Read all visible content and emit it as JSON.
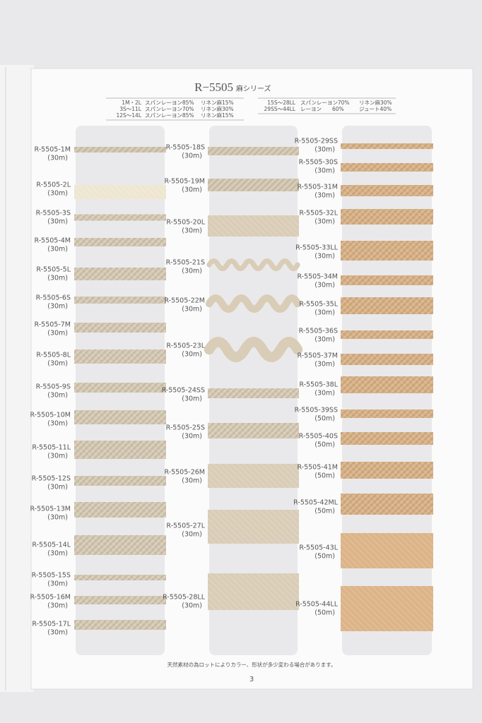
{
  "header": {
    "title": "R−5505",
    "series": "麻シリーズ"
  },
  "composition": {
    "left": [
      [
        "1M・2L",
        "スパンレーヨン85%",
        "リネン麻15%"
      ],
      [
        "3S～11L",
        "スパンレーヨン70%",
        "リネン麻30%"
      ],
      [
        "12S～14L",
        "スパンレーヨン85%",
        "リネン麻15%"
      ]
    ],
    "right": [
      [
        "15S～28LL",
        "スパンレーヨン70%",
        "リネン麻30%"
      ],
      [
        "29SS～44LL",
        "レーヨン　　60%",
        "ジュート40%"
      ]
    ]
  },
  "columns": [
    [
      {
        "code": "R-5505-1M",
        "length": "(30m)"
      },
      {
        "code": "R-5505-2L",
        "length": "(30m)"
      },
      {
        "code": "R-5505-3S",
        "length": "(30m)"
      },
      {
        "code": "R-5505-4M",
        "length": "(30m)"
      },
      {
        "code": "R-5505-5L",
        "length": "(30m)"
      },
      {
        "code": "R-5505-6S",
        "length": "(30m)"
      },
      {
        "code": "R-5505-7M",
        "length": "(30m)"
      },
      {
        "code": "R-5505-8L",
        "length": "(30m)"
      },
      {
        "code": "R-5505-9S",
        "length": "(30m)"
      },
      {
        "code": "R-5505-10M",
        "length": "(30m)"
      },
      {
        "code": "R-5505-11L",
        "length": "(30m)"
      },
      {
        "code": "R-5505-12S",
        "length": "(30m)"
      },
      {
        "code": "R-5505-13M",
        "length": "(30m)"
      },
      {
        "code": "R-5505-14L",
        "length": "(30m)"
      },
      {
        "code": "R-5505-15S",
        "length": "(30m)"
      },
      {
        "code": "R-5505-16M",
        "length": "(30m)"
      },
      {
        "code": "R-5505-17L",
        "length": "(30m)"
      }
    ],
    [
      {
        "code": "R-5505-18S",
        "length": "(30m)"
      },
      {
        "code": "R-5505-19M",
        "length": "(30m)"
      },
      {
        "code": "R-5505-20L",
        "length": "(30m)"
      },
      {
        "code": "R-5505-21S",
        "length": "(30m)"
      },
      {
        "code": "R-5505-22M",
        "length": "(30m)"
      },
      {
        "code": "R-5505-23L",
        "length": "(30m)"
      },
      {
        "code": "R-5505-24SS",
        "length": "(30m)"
      },
      {
        "code": "R-5505-25S",
        "length": "(30m)"
      },
      {
        "code": "R-5505-26M",
        "length": "(30m)"
      },
      {
        "code": "R-5505-27L",
        "length": "(30m)"
      },
      {
        "code": "R-5505-28LL",
        "length": "(30m)"
      }
    ],
    [
      {
        "code": "R-5505-29SS",
        "length": "(30m)"
      },
      {
        "code": "R-5505-30S",
        "length": "(30m)"
      },
      {
        "code": "R-5505-31M",
        "length": "(30m)"
      },
      {
        "code": "R-5505-32L",
        "length": "(30m)"
      },
      {
        "code": "R-5505-33LL",
        "length": "(30m)"
      },
      {
        "code": "R-5505-34M",
        "length": "(30m)"
      },
      {
        "code": "R-5505-35L",
        "length": "(30m)"
      },
      {
        "code": "R-5505-36S",
        "length": "(30m)"
      },
      {
        "code": "R-5505-37M",
        "length": "(30m)"
      },
      {
        "code": "R-5505-38L",
        "length": "(30m)"
      },
      {
        "code": "R-5505-39SS",
        "length": "(50m)"
      },
      {
        "code": "R-5505-40S",
        "length": "(50m)"
      },
      {
        "code": "R-5505-41M",
        "length": "(50m)"
      },
      {
        "code": "R-5505-42ML",
        "length": "(50m)"
      },
      {
        "code": "R-5505-43L",
        "length": "(50m)"
      },
      {
        "code": "R-5505-44LL",
        "length": "(50m)"
      }
    ]
  ],
  "footer": {
    "note": "天然素材の為ロットによりカラー、形状が多少変わる場合があります。",
    "page": "3"
  }
}
